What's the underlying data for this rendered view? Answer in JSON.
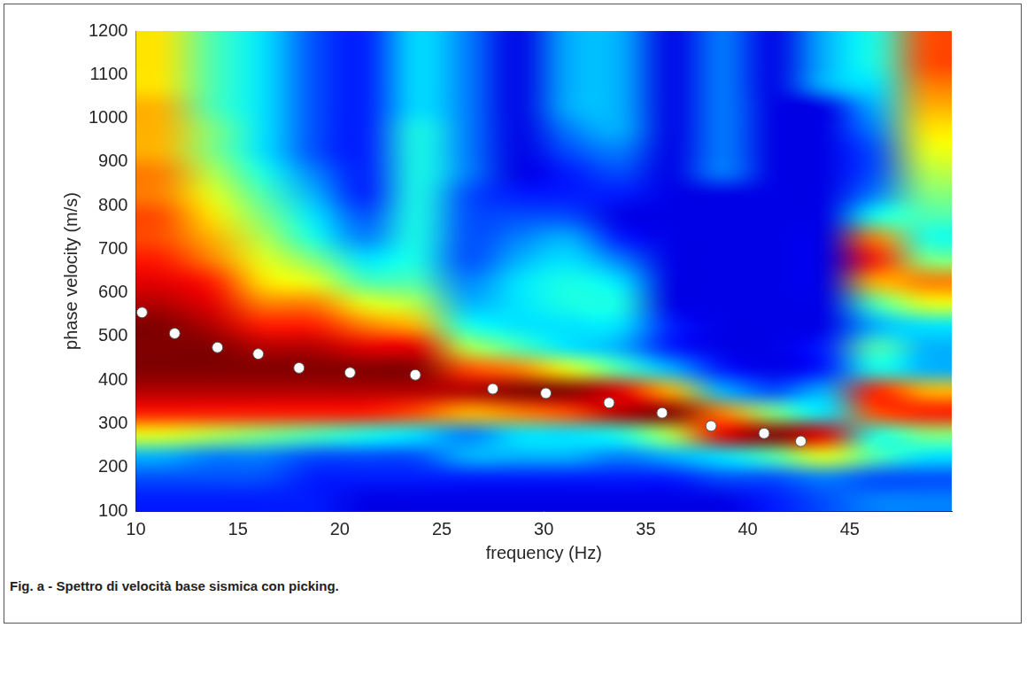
{
  "chart_data": {
    "type": "heatmap",
    "caption": "Fig. a - Spettro di velocità base sismica con picking.",
    "xlabel": "frequency (Hz)",
    "ylabel": "phase velocity (m/s)",
    "xlim": [
      10,
      50
    ],
    "ylim": [
      100,
      1200
    ],
    "xticks": [
      10,
      15,
      20,
      25,
      30,
      35,
      40,
      45
    ],
    "yticks": [
      100,
      200,
      300,
      400,
      500,
      600,
      700,
      800,
      900,
      1000,
      1100,
      1200
    ],
    "grid": false,
    "cells": {
      "x_edges": [
        10,
        12.5,
        15,
        17.5,
        20,
        22.5,
        25,
        27.5,
        30,
        32.5,
        35,
        37.5,
        40,
        42.5,
        45,
        47.5,
        50
      ],
      "y_edges": [
        100,
        150,
        200,
        250,
        300,
        350,
        400,
        450,
        500,
        550,
        600,
        650,
        700,
        750,
        800,
        850,
        900,
        950,
        1000,
        1050,
        1100,
        1150,
        1200
      ],
      "z": [
        [
          0.15,
          0.15,
          0.15,
          0.15,
          0.1,
          0.1,
          0.1,
          0.1,
          0.1,
          0.1,
          0.1,
          0.1,
          0.15,
          0.2,
          0.25,
          0.25
        ],
        [
          0.2,
          0.2,
          0.2,
          0.15,
          0.15,
          0.15,
          0.15,
          0.15,
          0.15,
          0.15,
          0.15,
          0.2,
          0.2,
          0.25,
          0.2,
          0.2
        ],
        [
          0.3,
          0.25,
          0.25,
          0.2,
          0.2,
          0.2,
          0.3,
          0.3,
          0.3,
          0.25,
          0.3,
          0.35,
          0.45,
          0.6,
          0.45,
          0.35
        ],
        [
          0.6,
          0.55,
          0.5,
          0.45,
          0.4,
          0.35,
          0.25,
          0.35,
          0.35,
          0.4,
          0.55,
          0.9,
          1,
          0.9,
          0.4,
          0.5
        ],
        [
          0.85,
          0.85,
          0.85,
          0.85,
          0.85,
          0.8,
          0.7,
          0.75,
          0.8,
          0.95,
          1,
          0.75,
          0.5,
          0.35,
          0.8,
          0.85
        ],
        [
          0.95,
          0.95,
          0.95,
          0.95,
          0.95,
          0.95,
          0.95,
          1,
          1,
          0.9,
          0.7,
          0.3,
          0.2,
          0.3,
          0.85,
          0.7
        ],
        [
          1,
          1,
          1,
          1,
          1,
          1,
          0.8,
          0.75,
          0.6,
          0.45,
          0.3,
          0.15,
          0.1,
          0.15,
          0.4,
          0.3
        ],
        [
          1,
          1,
          0.95,
          0.95,
          0.9,
          0.9,
          0.55,
          0.45,
          0.35,
          0.3,
          0.15,
          0.1,
          0.1,
          0.15,
          0.45,
          0.3
        ],
        [
          1,
          0.95,
          0.85,
          0.85,
          0.75,
          0.7,
          0.4,
          0.35,
          0.35,
          0.35,
          0.15,
          0.1,
          0.1,
          0.1,
          0.3,
          0.35
        ],
        [
          0.95,
          0.9,
          0.75,
          0.75,
          0.6,
          0.55,
          0.3,
          0.35,
          0.4,
          0.4,
          0.1,
          0.1,
          0.1,
          0.1,
          0.45,
          0.6
        ],
        [
          0.9,
          0.85,
          0.65,
          0.6,
          0.45,
          0.45,
          0.25,
          0.35,
          0.4,
          0.35,
          0.1,
          0.1,
          0.1,
          0.1,
          0.7,
          0.75
        ],
        [
          0.85,
          0.75,
          0.6,
          0.5,
          0.35,
          0.4,
          0.2,
          0.3,
          0.35,
          0.25,
          0.1,
          0.1,
          0.1,
          0.1,
          0.85,
          0.5
        ],
        [
          0.8,
          0.7,
          0.55,
          0.4,
          0.25,
          0.4,
          0.2,
          0.25,
          0.3,
          0.15,
          0.1,
          0.1,
          0.1,
          0.1,
          0.75,
          0.4
        ],
        [
          0.8,
          0.65,
          0.5,
          0.35,
          0.2,
          0.4,
          0.2,
          0.2,
          0.2,
          0.1,
          0.1,
          0.1,
          0.1,
          0.1,
          0.4,
          0.45
        ],
        [
          0.75,
          0.6,
          0.45,
          0.3,
          0.15,
          0.4,
          0.2,
          0.15,
          0.15,
          0.15,
          0.1,
          0.1,
          0.1,
          0.1,
          0.25,
          0.5
        ],
        [
          0.75,
          0.55,
          0.4,
          0.25,
          0.15,
          0.4,
          0.25,
          0.1,
          0.15,
          0.2,
          0.1,
          0.25,
          0.1,
          0.1,
          0.2,
          0.55
        ],
        [
          0.7,
          0.5,
          0.35,
          0.2,
          0.15,
          0.4,
          0.25,
          0.1,
          0.2,
          0.25,
          0.1,
          0.25,
          0.1,
          0.1,
          0.2,
          0.6
        ],
        [
          0.7,
          0.5,
          0.35,
          0.2,
          0.15,
          0.4,
          0.25,
          0.1,
          0.25,
          0.3,
          0.1,
          0.25,
          0.1,
          0.1,
          0.25,
          0.65
        ],
        [
          0.7,
          0.45,
          0.35,
          0.2,
          0.15,
          0.35,
          0.25,
          0.1,
          0.3,
          0.3,
          0.1,
          0.25,
          0.1,
          0.1,
          0.3,
          0.7
        ],
        [
          0.65,
          0.45,
          0.35,
          0.2,
          0.15,
          0.35,
          0.25,
          0.1,
          0.3,
          0.3,
          0.1,
          0.25,
          0.1,
          0.3,
          0.35,
          0.75
        ],
        [
          0.65,
          0.45,
          0.35,
          0.2,
          0.15,
          0.35,
          0.25,
          0.1,
          0.3,
          0.3,
          0.1,
          0.25,
          0.1,
          0.3,
          0.4,
          0.8
        ],
        [
          0.65,
          0.45,
          0.35,
          0.2,
          0.15,
          0.35,
          0.25,
          0.1,
          0.3,
          0.3,
          0.1,
          0.25,
          0.1,
          0.3,
          0.4,
          0.8
        ]
      ]
    },
    "picks": {
      "x": [
        10.3,
        11.9,
        14,
        16,
        18,
        20.5,
        23.7,
        27.5,
        30.1,
        33.2,
        35.8,
        38.2,
        40.8,
        42.6
      ],
      "y": [
        555,
        507,
        475,
        460,
        428,
        417,
        412,
        380,
        370,
        348,
        325,
        295,
        278,
        260
      ],
      "color": "#ffffff",
      "marker": "circle"
    }
  }
}
